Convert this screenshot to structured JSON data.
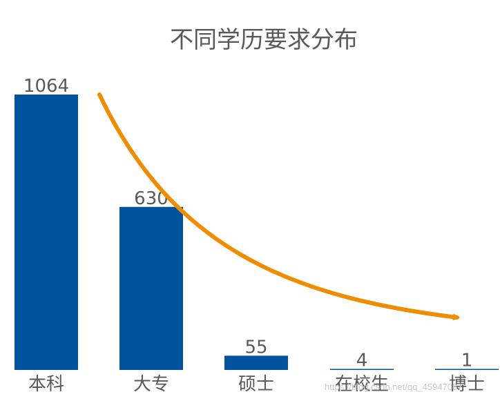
{
  "chart_data": {
    "type": "bar",
    "title": "不同学历要求分布",
    "categories": [
      "本科",
      "大专",
      "硕士",
      "在校生",
      "博士"
    ],
    "values": [
      1064,
      630,
      55,
      4,
      1
    ],
    "data_labels": [
      "1064",
      "630",
      "55",
      "4",
      "1"
    ],
    "xlabel": "",
    "ylabel": "",
    "ylim": [
      0,
      1064
    ],
    "grid": false,
    "legend": "none",
    "annotations": [
      {
        "type": "arrow",
        "description": "decreasing trend curve",
        "color": "#F08C00"
      }
    ]
  },
  "colors": {
    "bar": "#00539C",
    "trend_arrow": "#F08C00",
    "label_text": "#595959",
    "title_text": "#595959"
  },
  "watermark": "https://blog.csdn.net/qq_45947087"
}
